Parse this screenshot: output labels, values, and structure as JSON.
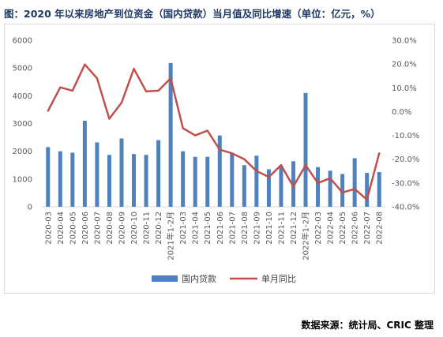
{
  "title": "图：2020 年以来房地产到位资金（国内贷款）当月值及同比增速（单位：亿元，%）",
  "source": "数据来源：统计局、CRIC 整理",
  "colors": {
    "bar": "#4f81bd",
    "line": "#c0504d",
    "grid": "#d9d9d9",
    "text": "#595959"
  },
  "chart_data": {
    "type": "bar",
    "categories": [
      "2020-03",
      "2020-04",
      "2020-05",
      "2020-06",
      "2020-07",
      "2020-08",
      "2020-09",
      "2020-10",
      "2020-11",
      "2020-12",
      "2021年1-2月",
      "2021-03",
      "2021-04",
      "2021-05",
      "2021-06",
      "2021-07",
      "2021-08",
      "2021-09",
      "2021-10",
      "2021-11",
      "2021-12",
      "2022年1-2月",
      "2022-03",
      "2022-04",
      "2022-05",
      "2022-06",
      "2022-07",
      "2022-08"
    ],
    "series": [
      {
        "name": "国内贷款",
        "type": "bar",
        "axis": "left",
        "values": [
          2150,
          2000,
          1950,
          3100,
          2320,
          1870,
          2460,
          1900,
          1870,
          2400,
          5180,
          2000,
          1800,
          1800,
          2570,
          1920,
          1500,
          1840,
          1350,
          1480,
          1640,
          4100,
          1430,
          1300,
          1180,
          1750,
          1220,
          1250
        ]
      },
      {
        "name": "单月同比",
        "type": "line",
        "axis": "right",
        "values": [
          0.3,
          10.2,
          8.8,
          19.8,
          14.0,
          -3.0,
          3.8,
          18.0,
          8.5,
          8.8,
          14.0,
          -7.0,
          -10.0,
          -8.0,
          -16.0,
          -17.5,
          -20.0,
          -25.0,
          -27.5,
          -22.5,
          -31.5,
          -22.5,
          -30.0,
          -28.0,
          -34.0,
          -32.5,
          -37.0,
          -17.5
        ]
      }
    ],
    "y_left": {
      "min": 0,
      "max": 6000,
      "ticks": [
        "0",
        "1000",
        "2000",
        "3000",
        "4000",
        "5000",
        "6000"
      ]
    },
    "y_right": {
      "min": -40,
      "max": 30,
      "ticks": [
        "-40.0%",
        "-30.0%",
        "-20.0%",
        "-10.0%",
        "0.0%",
        "10.0%",
        "20.0%",
        "30.0%"
      ]
    },
    "grid": false,
    "legend_position": "bottom"
  }
}
